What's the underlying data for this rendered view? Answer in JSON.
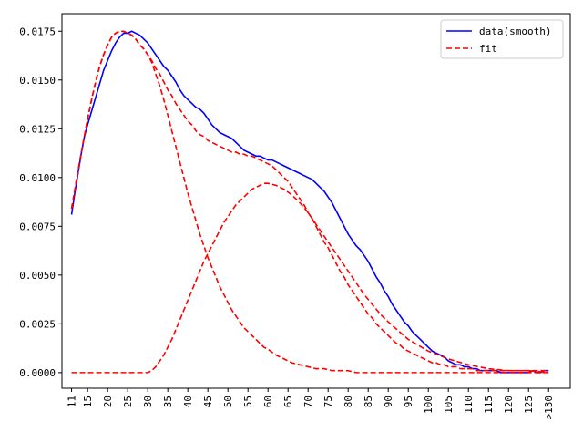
{
  "chart_data": {
    "type": "line",
    "title": "",
    "xlabel": "",
    "ylabel": "",
    "x_categories": [
      "11",
      "15",
      "20",
      "25",
      "30",
      "35",
      "40",
      "45",
      "50",
      "55",
      "60",
      "65",
      "70",
      "75",
      "80",
      "85",
      "90",
      "95",
      "100",
      "105",
      "110",
      "115",
      "120",
      "125",
      ">130"
    ],
    "ylim": [
      -0.0008,
      0.0184
    ],
    "y_ticks": [
      "0.0000",
      "0.0025",
      "0.0050",
      "0.0075",
      "0.0100",
      "0.0125",
      "0.0150",
      "0.0175"
    ],
    "grid": false,
    "legend": {
      "placement": "top-right",
      "entries": [
        {
          "label": "data(smooth)",
          "color": "#0000ff",
          "style": "solid"
        },
        {
          "label": "fit",
          "color": "#ff0000",
          "style": "dashed"
        }
      ]
    },
    "series": [
      {
        "name": "data(smooth)",
        "color": "#0000ff",
        "style": "solid",
        "x": [
          11,
          11.8,
          12.6,
          13.4,
          14.2,
          15,
          16,
          17,
          18,
          19,
          20,
          21,
          22,
          23,
          24,
          25,
          26,
          27,
          28,
          29,
          30,
          31,
          32,
          33,
          34,
          35,
          36,
          37,
          38,
          39,
          40,
          41,
          42,
          43,
          44,
          45,
          46,
          47,
          48,
          49,
          50,
          51,
          52,
          53,
          54,
          55,
          56,
          57,
          58,
          59,
          60,
          61,
          62,
          63,
          64,
          65,
          66,
          67,
          68,
          69,
          70,
          71,
          72,
          73,
          74,
          75,
          76,
          77,
          78,
          79,
          80,
          81,
          82,
          83,
          84,
          85,
          86,
          87,
          88,
          89,
          90,
          91,
          92,
          93,
          94,
          95,
          96,
          97,
          98,
          99,
          100,
          101,
          102,
          103,
          104,
          105,
          106,
          107,
          108,
          109,
          110,
          111,
          112,
          113,
          114,
          115,
          116,
          117,
          118,
          119,
          120,
          121,
          122,
          123,
          124,
          125,
          126,
          127,
          128,
          129,
          130
        ],
        "y": [
          0.0081,
          0.0092,
          0.0102,
          0.0112,
          0.0121,
          0.0127,
          0.0134,
          0.0141,
          0.0148,
          0.0155,
          0.016,
          0.0165,
          0.0169,
          0.0172,
          0.0174,
          0.0174,
          0.0175,
          0.0174,
          0.0173,
          0.0171,
          0.0169,
          0.0166,
          0.0163,
          0.016,
          0.0157,
          0.0155,
          0.0152,
          0.0149,
          0.0145,
          0.0142,
          0.014,
          0.0138,
          0.0136,
          0.0135,
          0.0133,
          0.013,
          0.0127,
          0.0125,
          0.0123,
          0.0122,
          0.0121,
          0.012,
          0.0118,
          0.0116,
          0.0114,
          0.0113,
          0.0112,
          0.0111,
          0.0111,
          0.011,
          0.0109,
          0.0109,
          0.0108,
          0.0107,
          0.0106,
          0.0105,
          0.0104,
          0.0103,
          0.0102,
          0.0101,
          0.01,
          0.0099,
          0.0097,
          0.0095,
          0.0093,
          0.009,
          0.0087,
          0.0083,
          0.0079,
          0.0075,
          0.0071,
          0.0068,
          0.0065,
          0.0063,
          0.006,
          0.0057,
          0.0053,
          0.0049,
          0.0046,
          0.0042,
          0.0039,
          0.0035,
          0.0032,
          0.0029,
          0.0026,
          0.0024,
          0.0021,
          0.0019,
          0.0017,
          0.0015,
          0.0013,
          0.0011,
          0.001,
          0.0009,
          0.0008,
          0.0006,
          0.0005,
          0.0004,
          0.0004,
          0.0003,
          0.0003,
          0.0002,
          0.0002,
          0.0001,
          0.0001,
          0.0001,
          0.0001,
          0.0001,
          0.0,
          0.0,
          0.0,
          0.0,
          0.0,
          0.0,
          0.0,
          0.0,
          0.0001,
          0.0,
          0.0,
          0.0001,
          0.0001
        ]
      },
      {
        "name": "fit",
        "color": "#ff0000",
        "style": "dashed",
        "x": [
          11,
          12,
          13,
          14,
          15,
          16,
          17,
          18,
          19,
          20,
          21,
          22,
          23,
          24,
          25,
          26,
          27,
          28,
          29,
          30,
          31,
          32,
          33,
          34,
          35,
          36,
          37,
          38,
          39,
          40,
          41,
          42,
          43,
          44,
          45,
          46,
          47,
          48,
          49,
          50,
          51,
          52,
          53,
          54,
          55,
          56,
          57,
          58,
          59,
          60,
          61,
          62,
          63,
          64,
          65,
          66,
          67,
          68,
          69,
          70,
          71,
          72,
          73,
          74,
          75,
          76,
          77,
          78,
          79,
          80,
          81,
          82,
          83,
          84,
          85,
          86,
          87,
          88,
          89,
          90,
          91,
          92,
          93,
          94,
          95,
          96,
          97,
          98,
          99,
          100,
          101,
          102,
          103,
          104,
          105,
          106,
          107,
          108,
          109,
          110,
          111,
          112,
          113,
          114,
          115,
          116,
          117,
          118,
          119,
          120,
          121,
          122,
          123,
          124,
          125,
          126,
          127,
          128,
          129,
          130
        ],
        "y": [
          0.0084,
          0.0096,
          0.0108,
          0.0119,
          0.013,
          0.014,
          0.0149,
          0.0157,
          0.0163,
          0.0168,
          0.0172,
          0.0174,
          0.0175,
          0.0175,
          0.0174,
          0.0173,
          0.0171,
          0.0168,
          0.0166,
          0.0163,
          0.016,
          0.0156,
          0.0153,
          0.0149,
          0.0145,
          0.0142,
          0.0138,
          0.0135,
          0.0132,
          0.0129,
          0.0127,
          0.0124,
          0.0122,
          0.0121,
          0.0119,
          0.0118,
          0.0117,
          0.0116,
          0.0115,
          0.0114,
          0.0113,
          0.0113,
          0.0112,
          0.0112,
          0.0111,
          0.0111,
          0.011,
          0.0109,
          0.0108,
          0.0107,
          0.0106,
          0.0104,
          0.0102,
          0.01,
          0.0098,
          0.0095,
          0.0092,
          0.0089,
          0.0086,
          0.0082,
          0.0079,
          0.0075,
          0.0071,
          0.0067,
          0.0064,
          0.006,
          0.0056,
          0.0052,
          0.0049,
          0.0045,
          0.0042,
          0.0039,
          0.0036,
          0.0033,
          0.003,
          0.0028,
          0.0025,
          0.0023,
          0.0021,
          0.0019,
          0.0017,
          0.0015,
          0.0014,
          0.0012,
          0.0011,
          0.001,
          0.0009,
          0.0008,
          0.0007,
          0.0006,
          0.0005,
          0.0005,
          0.0004,
          0.0004,
          0.0003,
          0.0003,
          0.0003,
          0.0002,
          0.0002,
          0.0002,
          0.0002,
          0.0001,
          0.0001,
          0.0001,
          0.0001,
          0.0001,
          0.0001,
          0.0001,
          0.0001,
          0.0001,
          0.0001,
          0.0001,
          0.0001,
          0.0001,
          0.0001,
          0.0001,
          0.0001,
          0.0001,
          0.0001,
          0.0001
        ]
      },
      {
        "name": "fit",
        "color": "#ff0000",
        "style": "dashed",
        "x": [
          11,
          13,
          15,
          17,
          19,
          21,
          23,
          25,
          26,
          27,
          28,
          29,
          30,
          31,
          32,
          33,
          34,
          35,
          36,
          37,
          38,
          39,
          40,
          41,
          42,
          43,
          44,
          45,
          46,
          47,
          48,
          49,
          50,
          51,
          52,
          53,
          54,
          55,
          56,
          57,
          58,
          59,
          60,
          62,
          64,
          66,
          68,
          70,
          72,
          74,
          76,
          78,
          80,
          82,
          84,
          86,
          88,
          90,
          95,
          100,
          105,
          110,
          115,
          120,
          125,
          130
        ],
        "y": [
          0.0,
          0.0,
          0.0,
          0.0,
          0.0,
          0.0,
          0.0,
          0.0,
          0.0,
          0.0,
          0.0,
          0.0,
          0.0,
          0.0001,
          0.0003,
          0.0006,
          0.0009,
          0.0013,
          0.0017,
          0.0022,
          0.0027,
          0.0032,
          0.0037,
          0.0042,
          0.0047,
          0.0052,
          0.0057,
          0.0061,
          0.0065,
          0.0069,
          0.0073,
          0.0077,
          0.008,
          0.0083,
          0.0086,
          0.0088,
          0.009,
          0.0092,
          0.0094,
          0.0095,
          0.0096,
          0.0097,
          0.0097,
          0.0096,
          0.0094,
          0.0091,
          0.0087,
          0.0082,
          0.0076,
          0.007,
          0.0064,
          0.0058,
          0.0052,
          0.0046,
          0.004,
          0.0035,
          0.003,
          0.0026,
          0.0017,
          0.0011,
          0.0007,
          0.0004,
          0.0002,
          0.0001,
          0.0001,
          0.0
        ]
      },
      {
        "name": "fit",
        "color": "#ff0000",
        "style": "dashed",
        "x": [
          11,
          12,
          13,
          14,
          15,
          16,
          17,
          18,
          19,
          20,
          21,
          22,
          23,
          24,
          25,
          26,
          27,
          28,
          29,
          30,
          31,
          32,
          33,
          34,
          35,
          36,
          37,
          38,
          39,
          40,
          41,
          42,
          43,
          44,
          45,
          46,
          47,
          48,
          49,
          50,
          51,
          52,
          53,
          54,
          55,
          56,
          57,
          58,
          59,
          60,
          62,
          64,
          66,
          68,
          70,
          72,
          74,
          76,
          78,
          80,
          82,
          84,
          86,
          88,
          90,
          95,
          100,
          105,
          110,
          115,
          120,
          125,
          130
        ],
        "y": [
          0.0084,
          0.0096,
          0.0108,
          0.0119,
          0.013,
          0.014,
          0.0149,
          0.0157,
          0.0163,
          0.0168,
          0.0172,
          0.0174,
          0.0175,
          0.0175,
          0.0174,
          0.0173,
          0.0171,
          0.0168,
          0.0166,
          0.0163,
          0.0159,
          0.0153,
          0.0147,
          0.014,
          0.0132,
          0.0124,
          0.0116,
          0.0108,
          0.01,
          0.0092,
          0.0085,
          0.0078,
          0.0071,
          0.0065,
          0.0059,
          0.0054,
          0.0049,
          0.0044,
          0.004,
          0.0036,
          0.0032,
          0.0029,
          0.0026,
          0.0023,
          0.0021,
          0.0019,
          0.0017,
          0.0015,
          0.0013,
          0.0012,
          0.0009,
          0.0007,
          0.0005,
          0.0004,
          0.0003,
          0.0002,
          0.0002,
          0.0001,
          0.0001,
          0.0001,
          0.0,
          0.0,
          0.0,
          0.0,
          0.0,
          0.0,
          0.0,
          0.0,
          0.0,
          0.0,
          0.0,
          0.0,
          0.0
        ]
      }
    ]
  }
}
